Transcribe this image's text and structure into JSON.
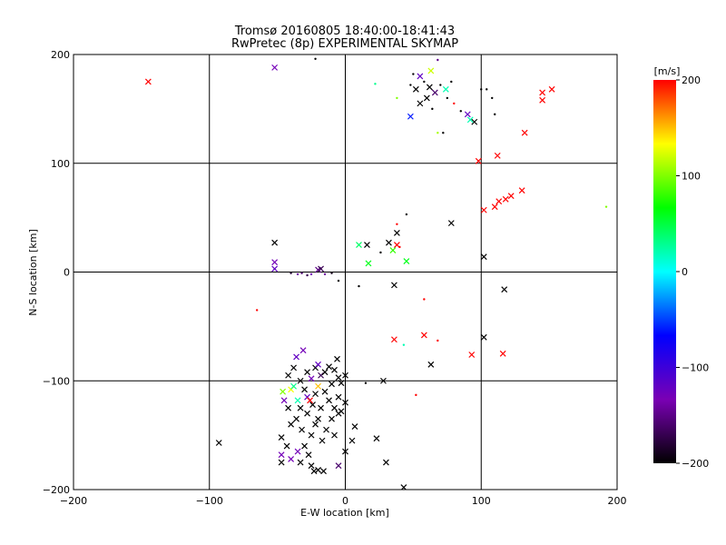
{
  "chart_data": [
    {
      "type": "scatter",
      "title": "Tromsø 20160805 18:40:00-18:41:43",
      "subtitle": "RwPretec (8p) EXPERIMENTAL SKYMAP",
      "xlabel": "E-W location [km]",
      "ylabel": "N-S location [km]",
      "xlim": [
        -200,
        200
      ],
      "ylim": [
        -200,
        200
      ],
      "xticks": [
        "-200",
        "-100",
        "0",
        "100",
        "200"
      ],
      "yticks": [
        "-200",
        "-100",
        "0",
        "100",
        "200"
      ],
      "grid": true,
      "marker_types": [
        "x",
        "dot"
      ],
      "points": [
        {
          "x": -145,
          "y": 175,
          "v": 200,
          "m": "x"
        },
        {
          "x": -52,
          "y": 188,
          "v": -130,
          "m": "x"
        },
        {
          "x": -22,
          "y": 196,
          "v": -200,
          "m": "dot"
        },
        {
          "x": 22,
          "y": 173,
          "v": 30,
          "m": "dot"
        },
        {
          "x": 50,
          "y": 182,
          "v": -200,
          "m": "dot"
        },
        {
          "x": 55,
          "y": 180,
          "v": -120,
          "m": "x"
        },
        {
          "x": 63,
          "y": 185,
          "v": 120,
          "m": "x"
        },
        {
          "x": 68,
          "y": 195,
          "v": -150,
          "m": "dot"
        },
        {
          "x": 48,
          "y": 172,
          "v": -200,
          "m": "dot"
        },
        {
          "x": 52,
          "y": 168,
          "v": -200,
          "m": "x"
        },
        {
          "x": 58,
          "y": 175,
          "v": -200,
          "m": "dot"
        },
        {
          "x": 62,
          "y": 170,
          "v": -200,
          "m": "x"
        },
        {
          "x": 66,
          "y": 165,
          "v": -160,
          "m": "x"
        },
        {
          "x": 70,
          "y": 172,
          "v": -200,
          "m": "dot"
        },
        {
          "x": 74,
          "y": 168,
          "v": 20,
          "m": "x"
        },
        {
          "x": 78,
          "y": 175,
          "v": -200,
          "m": "dot"
        },
        {
          "x": 60,
          "y": 160,
          "v": -200,
          "m": "x"
        },
        {
          "x": 55,
          "y": 155,
          "v": -200,
          "m": "x"
        },
        {
          "x": 64,
          "y": 150,
          "v": -200,
          "m": "dot"
        },
        {
          "x": 38,
          "y": 160,
          "v": 100,
          "m": "dot"
        },
        {
          "x": 48,
          "y": 143,
          "v": -60,
          "m": "x"
        },
        {
          "x": 75,
          "y": 160,
          "v": -200,
          "m": "dot"
        },
        {
          "x": 80,
          "y": 155,
          "v": 200,
          "m": "dot"
        },
        {
          "x": 85,
          "y": 148,
          "v": -200,
          "m": "dot"
        },
        {
          "x": 90,
          "y": 145,
          "v": -120,
          "m": "x"
        },
        {
          "x": 92,
          "y": 140,
          "v": 20,
          "m": "x"
        },
        {
          "x": 95,
          "y": 138,
          "v": -200,
          "m": "x"
        },
        {
          "x": 68,
          "y": 128,
          "v": 110,
          "m": "dot"
        },
        {
          "x": 72,
          "y": 128,
          "v": -200,
          "m": "dot"
        },
        {
          "x": 100,
          "y": 168,
          "v": -200,
          "m": "dot"
        },
        {
          "x": 104,
          "y": 168,
          "v": -200,
          "m": "dot"
        },
        {
          "x": 108,
          "y": 160,
          "v": -200,
          "m": "dot"
        },
        {
          "x": 110,
          "y": 145,
          "v": -200,
          "m": "dot"
        },
        {
          "x": 145,
          "y": 165,
          "v": 200,
          "m": "x"
        },
        {
          "x": 145,
          "y": 158,
          "v": 200,
          "m": "x"
        },
        {
          "x": 152,
          "y": 168,
          "v": 200,
          "m": "x"
        },
        {
          "x": 132,
          "y": 128,
          "v": 200,
          "m": "x"
        },
        {
          "x": 112,
          "y": 107,
          "v": 200,
          "m": "x"
        },
        {
          "x": 98,
          "y": 102,
          "v": 200,
          "m": "x"
        },
        {
          "x": 102,
          "y": 57,
          "v": 200,
          "m": "x"
        },
        {
          "x": 110,
          "y": 60,
          "v": 200,
          "m": "x"
        },
        {
          "x": 113,
          "y": 65,
          "v": 200,
          "m": "x"
        },
        {
          "x": 118,
          "y": 67,
          "v": 200,
          "m": "x"
        },
        {
          "x": 122,
          "y": 70,
          "v": 200,
          "m": "x"
        },
        {
          "x": 130,
          "y": 75,
          "v": 200,
          "m": "x"
        },
        {
          "x": 192,
          "y": 60,
          "v": 100,
          "m": "dot"
        },
        {
          "x": 45,
          "y": 53,
          "v": -200,
          "m": "dot"
        },
        {
          "x": 78,
          "y": 45,
          "v": -200,
          "m": "x"
        },
        {
          "x": 38,
          "y": 44,
          "v": 200,
          "m": "dot"
        },
        {
          "x": 38,
          "y": 36,
          "v": -200,
          "m": "x"
        },
        {
          "x": 32,
          "y": 27,
          "v": -200,
          "m": "x"
        },
        {
          "x": 38,
          "y": 25,
          "v": 200,
          "m": "x"
        },
        {
          "x": 40,
          "y": 23,
          "v": 200,
          "m": "dot"
        },
        {
          "x": 10,
          "y": 25,
          "v": 40,
          "m": "x"
        },
        {
          "x": 16,
          "y": 25,
          "v": -200,
          "m": "x"
        },
        {
          "x": 26,
          "y": 18,
          "v": -200,
          "m": "dot"
        },
        {
          "x": 35,
          "y": 20,
          "v": 80,
          "m": "x"
        },
        {
          "x": 45,
          "y": 10,
          "v": 60,
          "m": "x"
        },
        {
          "x": 17,
          "y": 8,
          "v": 60,
          "m": "x"
        },
        {
          "x": 102,
          "y": 14,
          "v": -200,
          "m": "x"
        },
        {
          "x": -52,
          "y": 27,
          "v": -200,
          "m": "x"
        },
        {
          "x": -52,
          "y": 9,
          "v": -130,
          "m": "x"
        },
        {
          "x": -52,
          "y": 3,
          "v": -120,
          "m": "x"
        },
        {
          "x": -40,
          "y": -1,
          "v": -180,
          "m": "dot"
        },
        {
          "x": -35,
          "y": -2,
          "v": -140,
          "m": "dot"
        },
        {
          "x": -32,
          "y": -1,
          "v": -160,
          "m": "dot"
        },
        {
          "x": -28,
          "y": -3,
          "v": -170,
          "m": "dot"
        },
        {
          "x": -25,
          "y": -2,
          "v": -130,
          "m": "dot"
        },
        {
          "x": -20,
          "y": 2,
          "v": -150,
          "m": "x"
        },
        {
          "x": -18,
          "y": 3,
          "v": -170,
          "m": "x"
        },
        {
          "x": -15,
          "y": -2,
          "v": -140,
          "m": "dot"
        },
        {
          "x": -10,
          "y": -1,
          "v": -190,
          "m": "dot"
        },
        {
          "x": -5,
          "y": -8,
          "v": -200,
          "m": "dot"
        },
        {
          "x": -65,
          "y": -35,
          "v": 200,
          "m": "dot"
        },
        {
          "x": 10,
          "y": -13,
          "v": -200,
          "m": "dot"
        },
        {
          "x": 36,
          "y": -12,
          "v": -200,
          "m": "x"
        },
        {
          "x": 58,
          "y": -25,
          "v": 200,
          "m": "dot"
        },
        {
          "x": 117,
          "y": -16,
          "v": -200,
          "m": "x"
        },
        {
          "x": 36,
          "y": -62,
          "v": 200,
          "m": "x"
        },
        {
          "x": 58,
          "y": -58,
          "v": 200,
          "m": "x"
        },
        {
          "x": 68,
          "y": -63,
          "v": 200,
          "m": "dot"
        },
        {
          "x": 43,
          "y": -67,
          "v": 20,
          "m": "dot"
        },
        {
          "x": 102,
          "y": -60,
          "v": -200,
          "m": "x"
        },
        {
          "x": 93,
          "y": -76,
          "v": 200,
          "m": "x"
        },
        {
          "x": 116,
          "y": -75,
          "v": 200,
          "m": "x"
        },
        {
          "x": 63,
          "y": -85,
          "v": -200,
          "m": "x"
        },
        {
          "x": 28,
          "y": -100,
          "v": -200,
          "m": "x"
        },
        {
          "x": 15,
          "y": -102,
          "v": -200,
          "m": "dot"
        },
        {
          "x": 52,
          "y": -113,
          "v": 200,
          "m": "dot"
        },
        {
          "x": -93,
          "y": -157,
          "v": -200,
          "m": "x"
        },
        {
          "x": -46,
          "y": -110,
          "v": 100,
          "m": "x"
        },
        {
          "x": -40,
          "y": -108,
          "v": 130,
          "m": "x"
        },
        {
          "x": -42,
          "y": -95,
          "v": -200,
          "m": "x"
        },
        {
          "x": -38,
          "y": -88,
          "v": -200,
          "m": "x"
        },
        {
          "x": -36,
          "y": -78,
          "v": -120,
          "m": "x"
        },
        {
          "x": -33,
          "y": -100,
          "v": -200,
          "m": "x"
        },
        {
          "x": -31,
          "y": -72,
          "v": -130,
          "m": "x"
        },
        {
          "x": -28,
          "y": -92,
          "v": -200,
          "m": "x"
        },
        {
          "x": -25,
          "y": -98,
          "v": -130,
          "m": "x"
        },
        {
          "x": -22,
          "y": -88,
          "v": -200,
          "m": "x"
        },
        {
          "x": -20,
          "y": -85,
          "v": -120,
          "m": "x"
        },
        {
          "x": -18,
          "y": -95,
          "v": -170,
          "m": "x"
        },
        {
          "x": -15,
          "y": -92,
          "v": -200,
          "m": "x"
        },
        {
          "x": -12,
          "y": -87,
          "v": -200,
          "m": "x"
        },
        {
          "x": -8,
          "y": -90,
          "v": -200,
          "m": "x"
        },
        {
          "x": -6,
          "y": -80,
          "v": -200,
          "m": "x"
        },
        {
          "x": -5,
          "y": -97,
          "v": -200,
          "m": "x"
        },
        {
          "x": -3,
          "y": -102,
          "v": -200,
          "m": "x"
        },
        {
          "x": 0,
          "y": -95,
          "v": -200,
          "m": "x"
        },
        {
          "x": -10,
          "y": -103,
          "v": -200,
          "m": "x"
        },
        {
          "x": -45,
          "y": -118,
          "v": -130,
          "m": "x"
        },
        {
          "x": -42,
          "y": -125,
          "v": -200,
          "m": "x"
        },
        {
          "x": -38,
          "y": -105,
          "v": 30,
          "m": "x"
        },
        {
          "x": -35,
          "y": -118,
          "v": 20,
          "m": "x"
        },
        {
          "x": -33,
          "y": -125,
          "v": -200,
          "m": "x"
        },
        {
          "x": -30,
          "y": -108,
          "v": -200,
          "m": "x"
        },
        {
          "x": -28,
          "y": -115,
          "v": -120,
          "m": "x"
        },
        {
          "x": -26,
          "y": -118,
          "v": 200,
          "m": "x"
        },
        {
          "x": -24,
          "y": -122,
          "v": -200,
          "m": "x"
        },
        {
          "x": -22,
          "y": -112,
          "v": -200,
          "m": "x"
        },
        {
          "x": -20,
          "y": -105,
          "v": 150,
          "m": "x"
        },
        {
          "x": -18,
          "y": -125,
          "v": -200,
          "m": "x"
        },
        {
          "x": -15,
          "y": -110,
          "v": -200,
          "m": "x"
        },
        {
          "x": -12,
          "y": -118,
          "v": -200,
          "m": "x"
        },
        {
          "x": -8,
          "y": -125,
          "v": -200,
          "m": "x"
        },
        {
          "x": -5,
          "y": -115,
          "v": -200,
          "m": "x"
        },
        {
          "x": -3,
          "y": -128,
          "v": -200,
          "m": "x"
        },
        {
          "x": 0,
          "y": -120,
          "v": -200,
          "m": "x"
        },
        {
          "x": -40,
          "y": -140,
          "v": -200,
          "m": "x"
        },
        {
          "x": -36,
          "y": -135,
          "v": -200,
          "m": "x"
        },
        {
          "x": -32,
          "y": -145,
          "v": -200,
          "m": "x"
        },
        {
          "x": -28,
          "y": -130,
          "v": -200,
          "m": "x"
        },
        {
          "x": -25,
          "y": -150,
          "v": -200,
          "m": "x"
        },
        {
          "x": -22,
          "y": -140,
          "v": -200,
          "m": "x"
        },
        {
          "x": -20,
          "y": -135,
          "v": -200,
          "m": "x"
        },
        {
          "x": -17,
          "y": -155,
          "v": -200,
          "m": "x"
        },
        {
          "x": -14,
          "y": -145,
          "v": -200,
          "m": "x"
        },
        {
          "x": -10,
          "y": -135,
          "v": -200,
          "m": "x"
        },
        {
          "x": -8,
          "y": -150,
          "v": -200,
          "m": "x"
        },
        {
          "x": -5,
          "y": -130,
          "v": -200,
          "m": "x"
        },
        {
          "x": -47,
          "y": -152,
          "v": -200,
          "m": "x"
        },
        {
          "x": -43,
          "y": -160,
          "v": -200,
          "m": "x"
        },
        {
          "x": -35,
          "y": -165,
          "v": -130,
          "m": "x"
        },
        {
          "x": -30,
          "y": -160,
          "v": -200,
          "m": "x"
        },
        {
          "x": -27,
          "y": -168,
          "v": -200,
          "m": "x"
        },
        {
          "x": -47,
          "y": -168,
          "v": -130,
          "m": "x"
        },
        {
          "x": -47,
          "y": -175,
          "v": -200,
          "m": "x"
        },
        {
          "x": -40,
          "y": -172,
          "v": -130,
          "m": "x"
        },
        {
          "x": -33,
          "y": -175,
          "v": -200,
          "m": "x"
        },
        {
          "x": -25,
          "y": -178,
          "v": -200,
          "m": "x"
        },
        {
          "x": -23,
          "y": -183,
          "v": -200,
          "m": "x"
        },
        {
          "x": -20,
          "y": -182,
          "v": -200,
          "m": "x"
        },
        {
          "x": -16,
          "y": -183,
          "v": -200,
          "m": "x"
        },
        {
          "x": -5,
          "y": -178,
          "v": -160,
          "m": "x"
        },
        {
          "x": 0,
          "y": -165,
          "v": -200,
          "m": "x"
        },
        {
          "x": 5,
          "y": -155,
          "v": -200,
          "m": "x"
        },
        {
          "x": 7,
          "y": -142,
          "v": -200,
          "m": "x"
        },
        {
          "x": 23,
          "y": -153,
          "v": -200,
          "m": "x"
        },
        {
          "x": 30,
          "y": -175,
          "v": -200,
          "m": "x"
        },
        {
          "x": 43,
          "y": -198,
          "v": -200,
          "m": "x"
        }
      ]
    },
    {
      "type": "heatmap",
      "role": "colorbar",
      "title": "[m/s]",
      "ylim": [
        -200,
        200
      ],
      "ticks": [
        "-200",
        "-100",
        "0",
        "100",
        "200"
      ],
      "colors": [
        "#000000",
        "#7a00b4",
        "#0000ff",
        "#00ffff",
        "#00ff00",
        "#ffff00",
        "#ff0000"
      ]
    }
  ]
}
